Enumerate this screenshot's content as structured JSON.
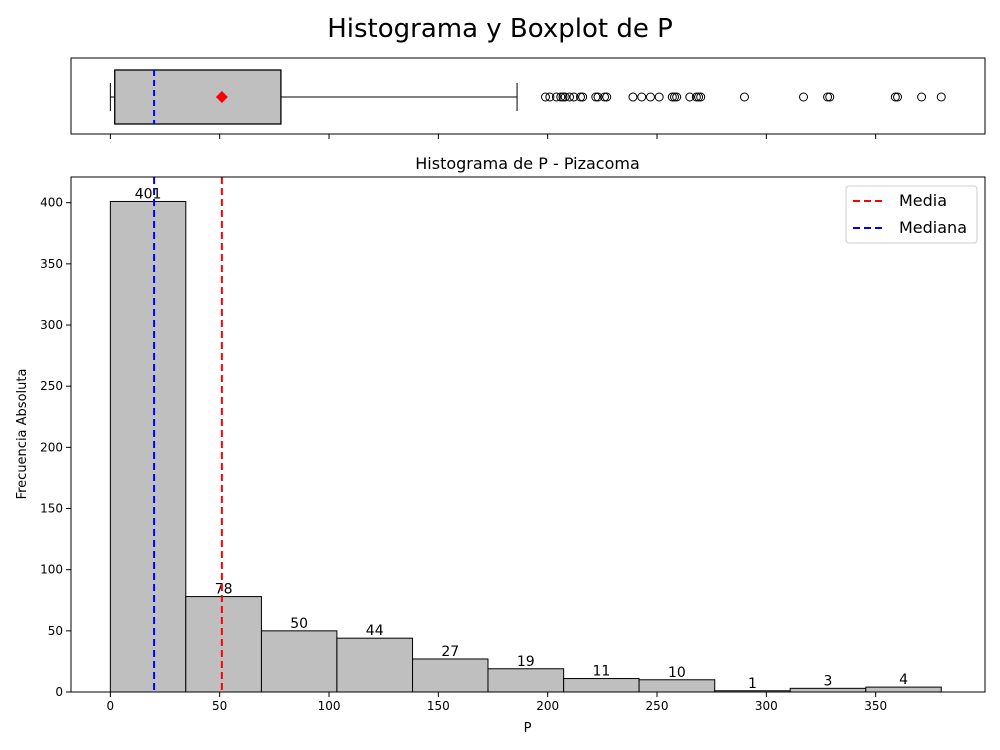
{
  "figure": {
    "suptitle": "Histograma y Boxplot de P"
  },
  "colors": {
    "bar_fill": "#bfbfbf",
    "edge": "#000000",
    "mean_line": "#ff0000",
    "median_line": "#0000ff",
    "mean_marker": "#ff0000"
  },
  "chart_data": [
    {
      "type": "boxplot",
      "orientation": "horizontal",
      "xlim": [
        -18,
        400
      ],
      "min_whisker": 0,
      "q1": 2,
      "median": 20,
      "mean": 51,
      "q3": 78,
      "max_whisker": 186,
      "outliers": [
        199,
        201,
        204,
        206,
        207,
        208,
        210,
        212,
        215,
        216,
        222,
        223,
        226,
        227,
        239,
        243,
        247,
        251,
        257,
        258,
        259,
        265,
        268,
        269,
        270,
        290,
        317,
        328,
        329,
        359,
        360,
        371,
        380
      ],
      "show_x_ticklabels": false
    },
    {
      "type": "histogram",
      "title": "Histograma de P - Pizacoma",
      "xlabel": "P",
      "ylabel": "Frecuencia Absoluta",
      "xlim": [
        -18,
        400
      ],
      "ylim": [
        0,
        421
      ],
      "bins": [
        {
          "start": 0,
          "end": 34.5,
          "count": 401
        },
        {
          "start": 34.5,
          "end": 69.1,
          "count": 78
        },
        {
          "start": 69.1,
          "end": 103.6,
          "count": 50
        },
        {
          "start": 103.6,
          "end": 138.2,
          "count": 44
        },
        {
          "start": 138.2,
          "end": 172.7,
          "count": 27
        },
        {
          "start": 172.7,
          "end": 207.3,
          "count": 19
        },
        {
          "start": 207.3,
          "end": 241.8,
          "count": 11
        },
        {
          "start": 241.8,
          "end": 276.4,
          "count": 10
        },
        {
          "start": 276.4,
          "end": 310.9,
          "count": 1
        },
        {
          "start": 310.9,
          "end": 345.5,
          "count": 3
        },
        {
          "start": 345.5,
          "end": 380,
          "count": 4
        }
      ],
      "xticks": [
        0,
        50,
        100,
        150,
        200,
        250,
        300,
        350
      ],
      "yticks": [
        0,
        50,
        100,
        150,
        200,
        250,
        300,
        350,
        400
      ],
      "mean": 51,
      "median": 20,
      "legend": {
        "placement": "top-right",
        "entries": [
          {
            "label": "Media",
            "color": "#ff0000",
            "style": "dashed"
          },
          {
            "label": "Mediana",
            "color": "#0000ff",
            "style": "dashed"
          }
        ]
      },
      "grid": false
    }
  ]
}
